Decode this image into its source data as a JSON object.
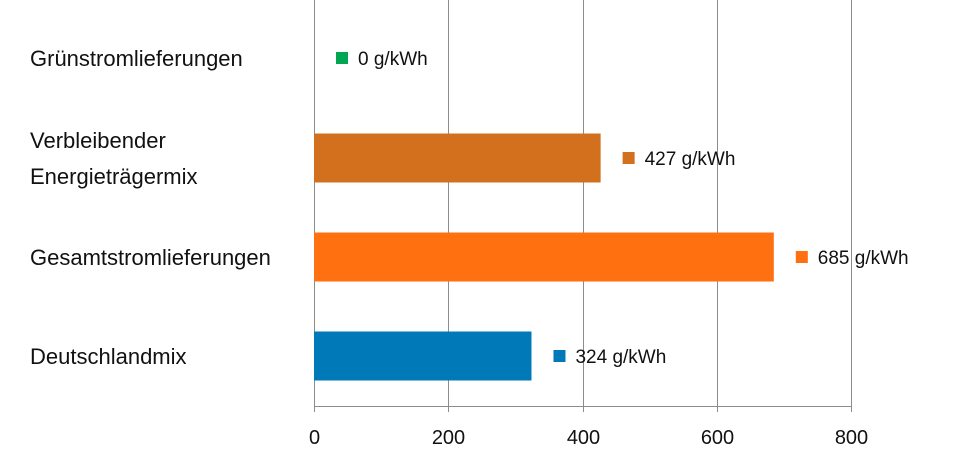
{
  "chart_data": {
    "type": "bar",
    "orientation": "horizontal",
    "categories": [
      [
        "Grünstromlieferungen"
      ],
      [
        "Verbleibender",
        "Energieträgermix"
      ],
      [
        "Gesamtstromlieferungen"
      ],
      [
        "Deutschlandmix"
      ]
    ],
    "values": [
      0,
      427,
      685,
      324
    ],
    "data_labels": [
      "0 g/kWh",
      "427 g/kWh",
      "685 g/kWh",
      "324 g/kWh"
    ],
    "colors": [
      "#00a651",
      "#d2701e",
      "#ff7010",
      "#0079b8"
    ],
    "xlim": [
      0,
      800
    ],
    "xticks": [
      0,
      200,
      400,
      600,
      800
    ],
    "xtick_labels": [
      "0",
      "200",
      "400",
      "600",
      "800"
    ],
    "grid": "vertical"
  }
}
